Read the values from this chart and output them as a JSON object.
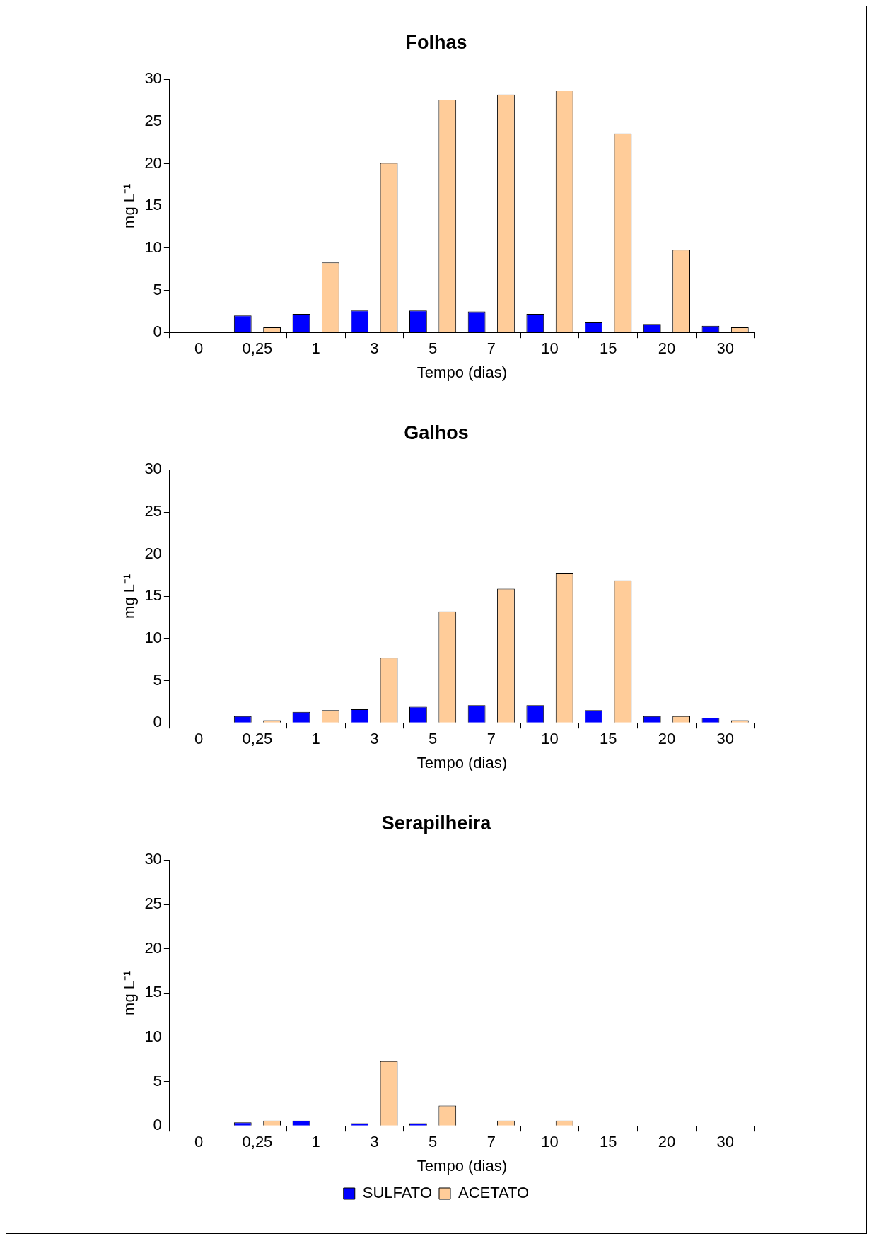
{
  "chart_data": [
    {
      "type": "bar",
      "title": "Folhas",
      "xlabel": "Tempo (dias)",
      "ylabel": "mg L⁻¹",
      "categories": [
        "0",
        "0,25",
        "1",
        "3",
        "5",
        "7",
        "10",
        "15",
        "20",
        "30"
      ],
      "ylim": [
        0,
        30
      ],
      "yticks": [
        0,
        5,
        10,
        15,
        20,
        25,
        30
      ],
      "grid": false,
      "series": [
        {
          "color": "#0000ff",
          "values": [
            0,
            2.0,
            2.2,
            2.6,
            2.6,
            2.5,
            2.2,
            1.2,
            1.0,
            0.8
          ]
        },
        {
          "color": "#ffcc99",
          "values": [
            0,
            0.6,
            8.3,
            20.1,
            27.6,
            28.2,
            28.7,
            23.6,
            9.8,
            0.6
          ]
        }
      ]
    },
    {
      "type": "bar",
      "title": "Galhos",
      "xlabel": "Tempo (dias)",
      "ylabel": "mg L⁻¹",
      "categories": [
        "0",
        "0,25",
        "1",
        "3",
        "5",
        "7",
        "10",
        "15",
        "20",
        "30"
      ],
      "ylim": [
        0,
        30
      ],
      "yticks": [
        0,
        5,
        10,
        15,
        20,
        25,
        30
      ],
      "grid": false,
      "series": [
        {
          "color": "#0000ff",
          "values": [
            0,
            0.8,
            1.3,
            1.6,
            1.9,
            2.1,
            2.1,
            1.5,
            0.8,
            0.6
          ]
        },
        {
          "color": "#ffcc99",
          "values": [
            0,
            0.3,
            1.5,
            7.7,
            13.2,
            15.9,
            17.7,
            16.9,
            0.8,
            0.3
          ]
        }
      ]
    },
    {
      "type": "bar",
      "title": "Serapilheira",
      "xlabel": "Tempo (dias)",
      "ylabel": "mg L⁻¹",
      "categories": [
        "0",
        "0,25",
        "1",
        "3",
        "5",
        "7",
        "10",
        "15",
        "20",
        "30"
      ],
      "ylim": [
        0,
        30
      ],
      "yticks": [
        0,
        5,
        10,
        15,
        20,
        25,
        30
      ],
      "grid": false,
      "legend": "bottom",
      "series": [
        {
          "name": "SULFATO",
          "color": "#0000ff",
          "values": [
            0,
            0.4,
            0.6,
            0.3,
            0.3,
            0,
            0,
            0,
            0,
            0
          ]
        },
        {
          "name": "ACETATO",
          "color": "#ffcc99",
          "values": [
            0,
            0.6,
            0,
            7.3,
            2.3,
            0.6,
            0.6,
            0,
            0,
            0
          ]
        }
      ]
    }
  ]
}
